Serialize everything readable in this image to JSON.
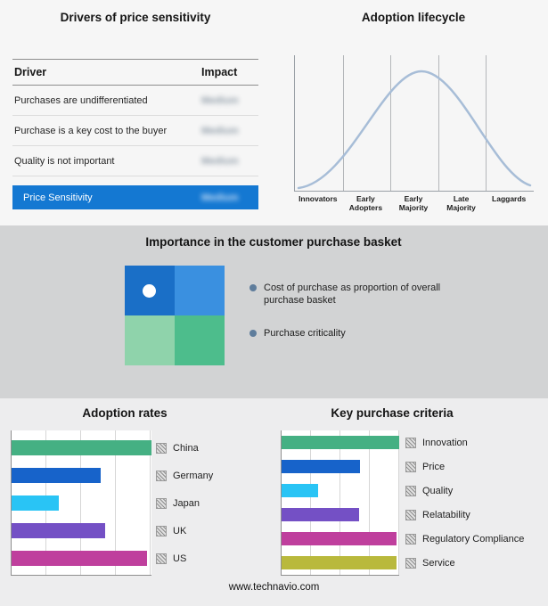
{
  "drivers": {
    "title": "Drivers of price sensitivity",
    "col_driver": "Driver",
    "col_impact": "Impact",
    "rows": [
      {
        "driver": "Purchases are undifferentiated",
        "impact": "Medium"
      },
      {
        "driver": "Purchase is a key cost to the buyer",
        "impact": "Medium"
      },
      {
        "driver": "Quality is not important",
        "impact": "Medium"
      }
    ],
    "highlight": {
      "driver": "Price Sensitivity",
      "impact": "Medium"
    },
    "highlight_color": "#1478d2"
  },
  "lifecycle": {
    "title": "Adoption lifecycle",
    "curve_color": "#a7bdd7",
    "stages": [
      {
        "line1": "Innovators",
        "line2": ""
      },
      {
        "line1": "Early",
        "line2": "Adopters"
      },
      {
        "line1": "Early",
        "line2": "Majority"
      },
      {
        "line1": "Late",
        "line2": "Majority"
      },
      {
        "line1": "Laggards",
        "line2": ""
      }
    ]
  },
  "basket": {
    "title": "Importance in the customer purchase basket",
    "legend": [
      "Cost of purchase as proportion of overall purchase basket",
      "Purchase criticality"
    ],
    "quadrant_colors": {
      "top_left": "#1a6fc7",
      "top_right": "#3a90e0",
      "bottom_left": "#8fd3ab",
      "bottom_right": "#4dbd8c"
    }
  },
  "footer": {
    "url": "www.technavio.com"
  },
  "chart_data": [
    {
      "type": "bar",
      "orientation": "horizontal",
      "title": "Adoption rates",
      "categories": [
        "China",
        "Germany",
        "Japan",
        "UK",
        "US"
      ],
      "values": [
        100,
        64,
        34,
        67,
        97
      ],
      "colors": [
        "#45b083",
        "#1763ca",
        "#29c4f5",
        "#7450c5",
        "#bf3f9d"
      ],
      "xlim": [
        0,
        100
      ],
      "grid": true,
      "legend_position": "right"
    },
    {
      "type": "bar",
      "orientation": "horizontal",
      "title": "Key purchase criteria",
      "categories": [
        "Innovation",
        "Price",
        "Quality",
        "Relatability",
        "Regulatory Compliance",
        "Service"
      ],
      "values": [
        100,
        67,
        31,
        66,
        98,
        98
      ],
      "colors": [
        "#45b083",
        "#1763ca",
        "#29c4f5",
        "#7450c5",
        "#bf3f9d",
        "#b9b93c"
      ],
      "xlim": [
        0,
        100
      ],
      "grid": true,
      "legend_position": "right"
    },
    {
      "type": "line",
      "title": "Adoption lifecycle",
      "shape": "bell-curve",
      "categories": [
        "Innovators",
        "Early Adopters",
        "Early Majority",
        "Late Majority",
        "Laggards"
      ]
    }
  ]
}
